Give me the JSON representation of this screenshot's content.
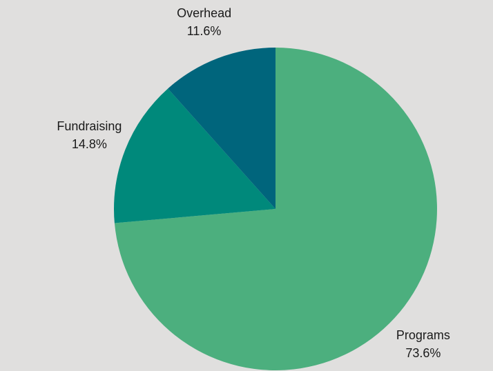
{
  "chart_data": {
    "type": "pie",
    "title": "",
    "start_angle_deg": 90,
    "direction": "clockwise",
    "slices": [
      {
        "label": "Programs",
        "value": 73.6,
        "value_label": "73.6%",
        "color": "#4caf7e"
      },
      {
        "label": "Fundraising",
        "value": 14.8,
        "value_label": "14.8%",
        "color": "#00897b"
      },
      {
        "label": "Overhead",
        "value": 11.6,
        "value_label": "11.6%",
        "color": "#00657c"
      }
    ],
    "background": "#e0dfde",
    "legend": "none"
  }
}
